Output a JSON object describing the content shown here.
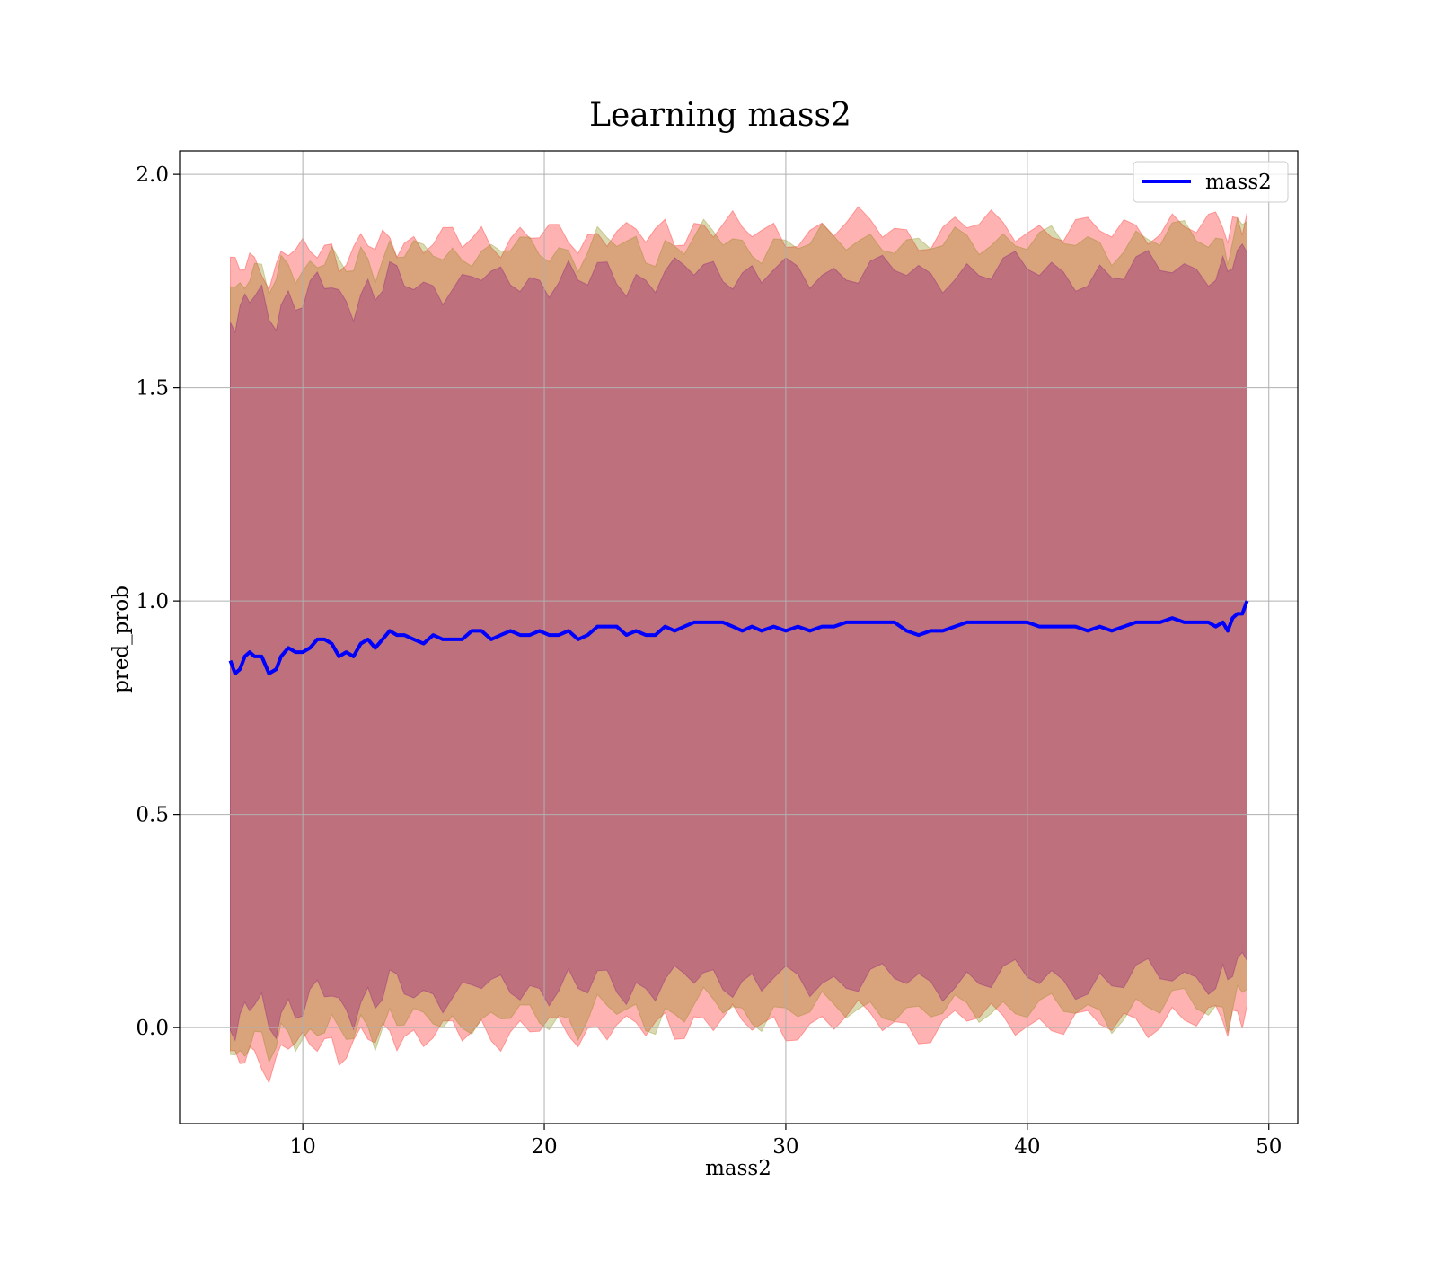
{
  "chart_data": {
    "type": "line",
    "title": "Learning mass2",
    "xlabel": "mass2",
    "ylabel": "pred_prob",
    "xlim": [
      4.9,
      51.2
    ],
    "ylim": [
      -0.225,
      2.055
    ],
    "xticks": [
      10,
      20,
      30,
      40,
      50
    ],
    "xtick_labels": [
      "10",
      "20",
      "30",
      "40",
      "50"
    ],
    "yticks": [
      0.0,
      0.5,
      1.0,
      1.5,
      2.0
    ],
    "ytick_labels": [
      "0.0",
      "0.5",
      "1.0",
      "1.5",
      "2.0"
    ],
    "grid": true,
    "legend": {
      "position": "top-right",
      "entries": [
        "mass2"
      ]
    },
    "series": [
      {
        "name": "mass2",
        "color": "#0000ff",
        "x": [
          7.0,
          7.2,
          7.4,
          7.6,
          7.8,
          8.0,
          8.3,
          8.6,
          8.9,
          9.1,
          9.4,
          9.7,
          10.0,
          10.3,
          10.6,
          10.9,
          11.2,
          11.5,
          11.8,
          12.1,
          12.4,
          12.7,
          13.0,
          13.3,
          13.6,
          13.9,
          14.2,
          14.6,
          15.0,
          15.4,
          15.8,
          16.2,
          16.6,
          17.0,
          17.4,
          17.8,
          18.2,
          18.6,
          19.0,
          19.4,
          19.8,
          20.2,
          20.6,
          21.0,
          21.4,
          21.8,
          22.2,
          22.6,
          23.0,
          23.4,
          23.8,
          24.2,
          24.6,
          25.0,
          25.4,
          25.8,
          26.2,
          26.6,
          27.0,
          27.4,
          27.8,
          28.2,
          28.6,
          29.0,
          29.5,
          30.0,
          30.5,
          31.0,
          31.5,
          32.0,
          32.5,
          33.0,
          33.5,
          34.0,
          34.5,
          35.0,
          35.5,
          36.0,
          36.5,
          37.0,
          37.5,
          38.0,
          38.5,
          39.0,
          39.5,
          40.0,
          40.5,
          41.0,
          41.5,
          42.0,
          42.5,
          43.0,
          43.5,
          44.0,
          44.5,
          45.0,
          45.5,
          46.0,
          46.5,
          47.0,
          47.5,
          47.8,
          48.1,
          48.3,
          48.5,
          48.7,
          48.9,
          49.1
        ],
        "y": [
          0.86,
          0.83,
          0.84,
          0.87,
          0.88,
          0.87,
          0.87,
          0.83,
          0.84,
          0.87,
          0.89,
          0.88,
          0.88,
          0.89,
          0.91,
          0.91,
          0.9,
          0.87,
          0.88,
          0.87,
          0.9,
          0.91,
          0.89,
          0.91,
          0.93,
          0.92,
          0.92,
          0.91,
          0.9,
          0.92,
          0.91,
          0.91,
          0.91,
          0.93,
          0.93,
          0.91,
          0.92,
          0.93,
          0.92,
          0.92,
          0.93,
          0.92,
          0.92,
          0.93,
          0.91,
          0.92,
          0.94,
          0.94,
          0.94,
          0.92,
          0.93,
          0.92,
          0.92,
          0.94,
          0.93,
          0.94,
          0.95,
          0.95,
          0.95,
          0.95,
          0.94,
          0.93,
          0.94,
          0.93,
          0.94,
          0.93,
          0.94,
          0.93,
          0.94,
          0.94,
          0.95,
          0.95,
          0.95,
          0.95,
          0.95,
          0.93,
          0.92,
          0.93,
          0.93,
          0.94,
          0.95,
          0.95,
          0.95,
          0.95,
          0.95,
          0.95,
          0.94,
          0.94,
          0.94,
          0.94,
          0.93,
          0.94,
          0.93,
          0.94,
          0.95,
          0.95,
          0.95,
          0.96,
          0.95,
          0.95,
          0.95,
          0.94,
          0.95,
          0.93,
          0.96,
          0.97,
          0.97,
          1.0
        ]
      }
    ],
    "bands": [
      {
        "color": "#ff0000",
        "opacity": 0.3,
        "half_width": 0.93
      },
      {
        "color": "#808000",
        "opacity": 0.3,
        "half_width": 0.9
      },
      {
        "color": "#800080",
        "opacity": 0.3,
        "half_width": 0.83
      }
    ]
  }
}
